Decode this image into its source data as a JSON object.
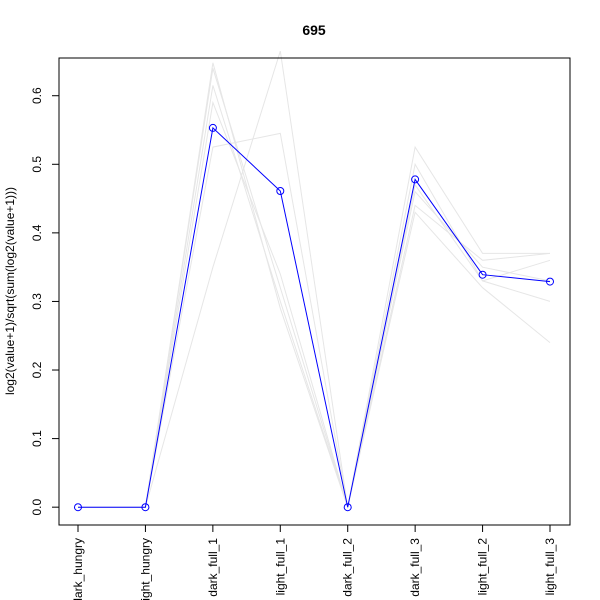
{
  "chart_data": {
    "type": "line",
    "title": "695",
    "xlabel": "",
    "ylabel": "log2(value+1)/sqrt(sum(log2(value+1)))",
    "categories": [
      "dark_hungry",
      "light_hungry",
      "dark_full_1",
      "light_full_1",
      "dark_full_2",
      "dark_full_3",
      "light_full_2",
      "light_full_3"
    ],
    "ylim": [
      -0.026,
      0.655
    ],
    "y_ticks": [
      0.0,
      0.1,
      0.2,
      0.3,
      0.4,
      0.5,
      0.6
    ],
    "y_tick_labels": [
      "0.0",
      "0.1",
      "0.2",
      "0.3",
      "0.4",
      "0.5",
      "0.6"
    ],
    "grid": false,
    "highlight_color": "#0000ff",
    "background_color": "#e6e6e6",
    "series": [
      {
        "values": [
          0,
          0,
          0.553,
          0.461,
          0.0,
          0.478,
          0.339,
          0.329
        ],
        "highlight": true
      },
      {
        "values": [
          0,
          0,
          0.64,
          0.32,
          0.0,
          0.46,
          0.35,
          0.33
        ]
      },
      {
        "values": [
          0,
          0,
          0.615,
          0.3,
          0.0,
          0.525,
          0.37,
          0.37
        ]
      },
      {
        "values": [
          0,
          0,
          0.35,
          0.665,
          0.0,
          0.43,
          0.32,
          0.24
        ]
      },
      {
        "values": [
          0,
          0,
          0.525,
          0.545,
          0.0,
          0.44,
          0.36,
          0.37
        ]
      },
      {
        "values": [
          0,
          0,
          0.648,
          0.29,
          0.0,
          0.5,
          0.33,
          0.3
        ]
      },
      {
        "values": [
          0,
          0,
          0.59,
          0.34,
          0.0,
          0.47,
          0.33,
          0.36
        ]
      }
    ]
  }
}
